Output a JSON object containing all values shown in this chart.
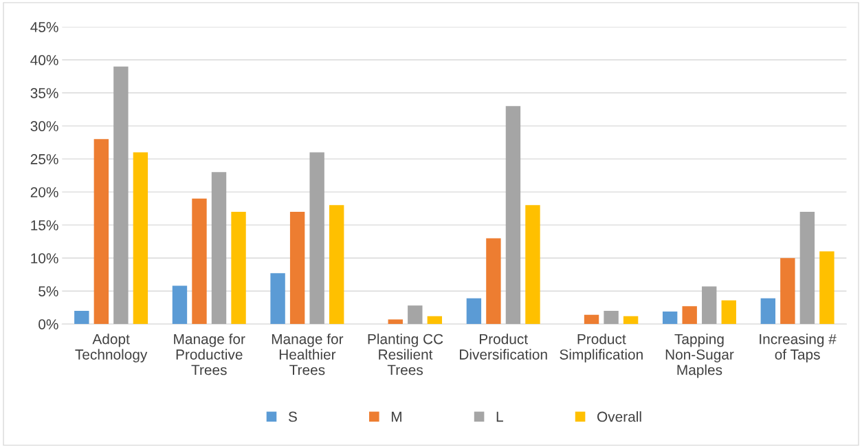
{
  "chart_data": {
    "type": "bar",
    "categories": [
      "Adopt Technology",
      "Manage for Productive Trees",
      "Manage for Healthier Trees",
      "Planting CC Resilient Trees",
      "Product Diversification",
      "Product Simplification",
      "Tapping Non-Sugar Maples",
      "Increasing # of Taps"
    ],
    "series": [
      {
        "name": "S",
        "color": "#5b9bd5",
        "values": [
          2,
          5.8,
          7.7,
          0,
          3.9,
          0,
          1.9,
          3.9
        ]
      },
      {
        "name": "M",
        "color": "#ed7d31",
        "values": [
          28,
          19,
          17,
          0.7,
          13,
          1.4,
          2.7,
          10
        ]
      },
      {
        "name": "L",
        "color": "#a5a5a5",
        "values": [
          39,
          23,
          26,
          2.8,
          33,
          2,
          5.7,
          17
        ]
      },
      {
        "name": "Overall",
        "color": "#ffc000",
        "values": [
          26,
          17,
          18,
          1.2,
          18,
          1.2,
          3.6,
          11
        ]
      }
    ],
    "ylim": [
      0,
      45
    ],
    "yticks": [
      {
        "value": 0,
        "label": "0%"
      },
      {
        "value": 5,
        "label": "5%"
      },
      {
        "value": 10,
        "label": "10%"
      },
      {
        "value": 15,
        "label": "15%"
      },
      {
        "value": 20,
        "label": "20%"
      },
      {
        "value": 25,
        "label": "25%"
      },
      {
        "value": 30,
        "label": "30%"
      },
      {
        "value": 35,
        "label": "35%"
      },
      {
        "value": 40,
        "label": "40%"
      },
      {
        "value": 45,
        "label": "45%"
      }
    ],
    "grid": "y",
    "legend": "bottom"
  }
}
